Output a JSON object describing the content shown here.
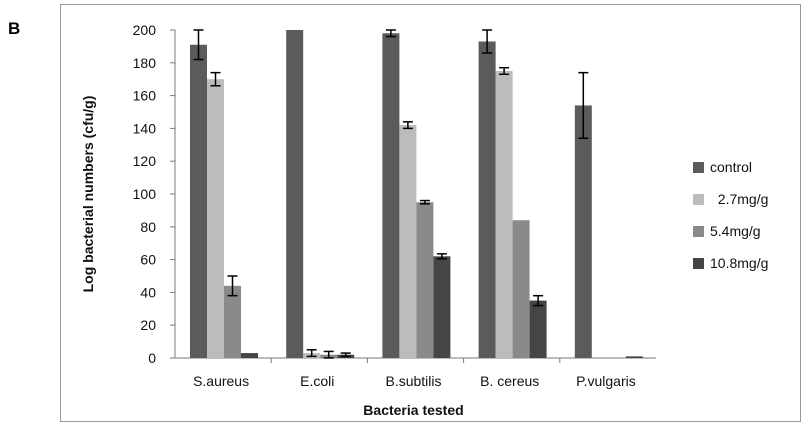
{
  "panel_label": "B",
  "chart_data": {
    "type": "bar",
    "title": "",
    "xlabel": "Bacteria tested",
    "ylabel": "Log bacterial numbers (cfu/g)",
    "ylim": [
      0,
      200
    ],
    "yticks": [
      0,
      20,
      40,
      60,
      80,
      100,
      120,
      140,
      160,
      180,
      200
    ],
    "grid": false,
    "legend_position": "right",
    "categories": [
      "S.aureus",
      "E.coli",
      "B.subtilis",
      "B. cereus",
      "P.vulgaris"
    ],
    "series": [
      {
        "name": "control",
        "color": "#5b5b5b",
        "values": [
          191,
          200,
          198,
          193,
          154
        ],
        "errors": [
          9,
          0,
          2,
          7,
          20
        ]
      },
      {
        "name": "  2.7mg/g",
        "color": "#bcbcbc",
        "values": [
          170,
          3,
          142,
          175,
          0
        ],
        "errors": [
          4,
          2,
          2,
          2,
          0
        ]
      },
      {
        "name": "5.4mg/g",
        "color": "#8a8a8a",
        "values": [
          44,
          2,
          95,
          84,
          0
        ],
        "errors": [
          6,
          2,
          1,
          0,
          0
        ]
      },
      {
        "name": "10.8mg/g",
        "color": "#454545",
        "values": [
          3,
          2,
          62,
          35,
          1
        ],
        "errors": [
          0,
          1,
          1.5,
          3,
          0
        ]
      }
    ]
  }
}
